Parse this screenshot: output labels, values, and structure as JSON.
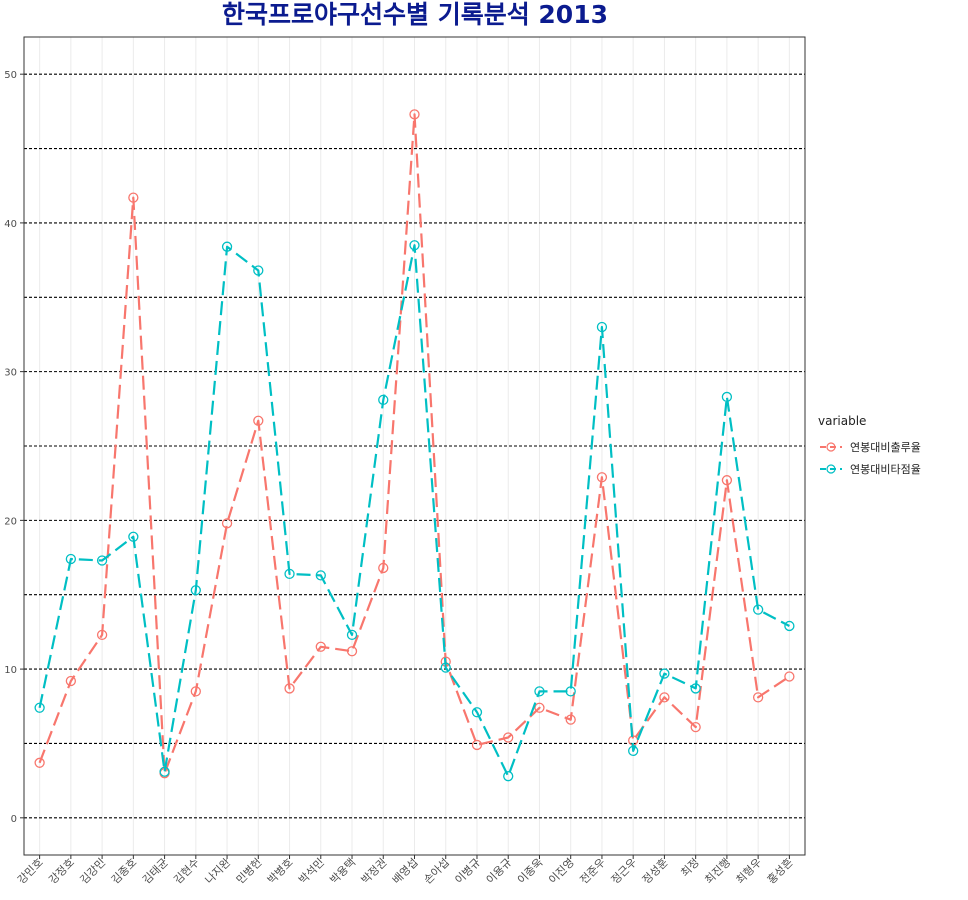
{
  "chart_data": {
    "type": "line",
    "title": "한국프로야구선수별 기록분석 2013",
    "xlabel": "",
    "ylabel": "",
    "ylim": [
      -2.5,
      52.5
    ],
    "yticks": [
      0,
      10,
      20,
      30,
      40,
      50
    ],
    "hlines": [
      0,
      5,
      10,
      15,
      20,
      25,
      30,
      35,
      40,
      45,
      50
    ],
    "categories": [
      "강민호",
      "강정호",
      "김강민",
      "김종호",
      "김태균",
      "김현수",
      "나지완",
      "민병헌",
      "박병호",
      "박석민",
      "박용택",
      "박정권",
      "배영섭",
      "손아섭",
      "이병규",
      "이용규",
      "이종욱",
      "이진영",
      "전준우",
      "정근우",
      "정성훈",
      "최정",
      "최진행",
      "최형우",
      "홍성흔"
    ],
    "legend_title": "variable",
    "legend_position": "right",
    "series": [
      {
        "name": "연봉대비출루율",
        "color": "#F8766D",
        "values": [
          3.7,
          9.2,
          12.3,
          41.7,
          3.0,
          8.5,
          19.8,
          26.7,
          8.7,
          11.5,
          11.2,
          16.8,
          47.3,
          10.5,
          4.9,
          5.4,
          7.4,
          6.6,
          22.9,
          5.2,
          8.1,
          6.1,
          22.7,
          8.1,
          9.5
        ]
      },
      {
        "name": "연봉대비타점율",
        "color": "#00BFC4",
        "values": [
          7.4,
          17.4,
          17.3,
          18.9,
          3.1,
          15.3,
          38.4,
          36.8,
          16.4,
          16.3,
          12.3,
          28.1,
          38.5,
          10.1,
          7.1,
          2.8,
          8.5,
          8.5,
          33.0,
          4.5,
          9.7,
          8.7,
          28.3,
          14.0,
          12.9
        ]
      }
    ]
  }
}
